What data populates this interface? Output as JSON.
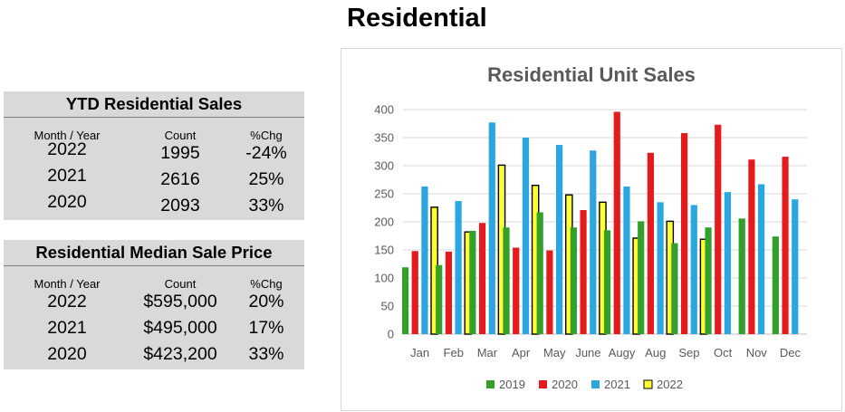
{
  "page_title": "Residential",
  "ytd_sales": {
    "title": "YTD Residential Sales",
    "headers": [
      "Month / Year",
      "Count",
      "%Chg"
    ],
    "rows": [
      {
        "year": "2022",
        "value": "1995",
        "chg": "-24%"
      },
      {
        "year": "2021",
        "value": "2616",
        "chg": "25%"
      },
      {
        "year": "2020",
        "value": "2093",
        "chg": "33%"
      }
    ]
  },
  "median_price": {
    "title": "Residential Median Sale Price",
    "headers": [
      "Month / Year",
      "Count",
      "%Chg"
    ],
    "rows": [
      {
        "year": "2022",
        "value": "$595,000",
        "chg": "20%"
      },
      {
        "year": "2021",
        "value": "$495,000",
        "chg": "17%"
      },
      {
        "year": "2020",
        "value": "$423,200",
        "chg": "33%"
      }
    ]
  },
  "chart_data": {
    "type": "bar",
    "title": "Residential Unit Sales",
    "xlabel": "",
    "ylabel": "",
    "ylim": [
      0,
      400
    ],
    "yticks": [
      0,
      50,
      100,
      150,
      200,
      250,
      300,
      350,
      400
    ],
    "grid": true,
    "legend_position": "bottom",
    "categories": [
      "Jan",
      "Feb",
      "Mar",
      "Apr",
      "May",
      "June",
      "Augy",
      "Aug",
      "Sep",
      "Oct",
      "Nov",
      "Dec"
    ],
    "series": [
      {
        "name": "2019",
        "color": "#33a02c",
        "values": [
          119,
          123,
          184,
          190,
          217,
          190,
          185,
          201,
          162,
          190,
          206,
          174
        ]
      },
      {
        "name": "2020",
        "color": "#e41a1c",
        "values": [
          148,
          147,
          198,
          154,
          149,
          221,
          396,
          323,
          358,
          373,
          311,
          316
        ]
      },
      {
        "name": "2021",
        "color": "#2aa7e0",
        "values": [
          263,
          237,
          377,
          350,
          337,
          327,
          263,
          235,
          230,
          253,
          267,
          240
        ]
      },
      {
        "name": "2022",
        "color": "#ffff33",
        "values": [
          226,
          182,
          301,
          265,
          248,
          235,
          171,
          201,
          169,
          null,
          null,
          null
        ]
      }
    ]
  }
}
